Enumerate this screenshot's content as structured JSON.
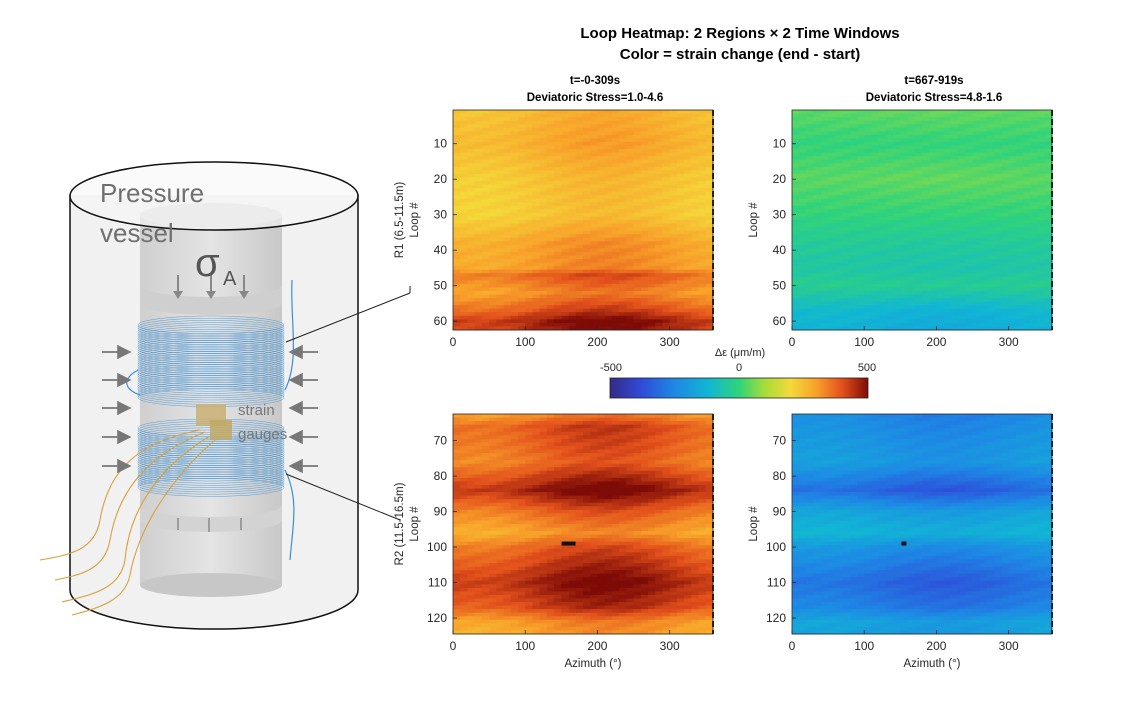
{
  "illustration": {
    "vessel_label_line1": "Pressure",
    "vessel_label_line2": "vessel",
    "sigma_symbol": "σ",
    "sigma_subscript": "A",
    "gauges_label_line1": "strain",
    "gauges_label_line2": "gauges",
    "loop_color": "#3a8fd6",
    "gauge_wire_color": "#d8a13c"
  },
  "chart_data": {
    "type": "heatmap",
    "title_line1": "Loop Heatmap: 2 Regions × 2 Time Windows",
    "title_line2": "Color = strain change (end - start)",
    "colormap": "parula-like (dark blue → cyan → green → yellow → red → dark red)",
    "colorbar": {
      "label": "Δε (μm/m)",
      "range": [
        -500,
        500
      ],
      "ticks": [
        "-500",
        "0",
        "500"
      ],
      "orientation": "horizontal"
    },
    "xlabel": "Azimuth (°)",
    "xlim": [
      0,
      360
    ],
    "xticks": [
      "0",
      "100",
      "200",
      "300"
    ],
    "ylabel": "Loop #",
    "columns": [
      {
        "time_label": "t=-0-309s",
        "stress_label": "Deviatoric Stress=1.0-4.6"
      },
      {
        "time_label": "t=667-919s",
        "stress_label": "Deviatoric Stress=4.8-1.6"
      }
    ],
    "rows": [
      {
        "region_label": "R1 (6.5-11.5m)",
        "loop_range": [
          1,
          62
        ],
        "yticks": [
          "10",
          "20",
          "30",
          "40",
          "50",
          "60"
        ]
      },
      {
        "region_label": "R2 (11.5-16.5m)",
        "loop_range": [
          63,
          124
        ],
        "yticks": [
          "70",
          "80",
          "90",
          "100",
          "110",
          "120"
        ]
      }
    ],
    "panels": [
      {
        "row": 0,
        "col": 0,
        "description": "mostly yellow to orange, stronger orange near loops 45-48 and dark orange-red near loops 57-62",
        "approx_strain_profile": [
          [
            1,
            260
          ],
          [
            10,
            280
          ],
          [
            20,
            240
          ],
          [
            30,
            230
          ],
          [
            38,
            300
          ],
          [
            45,
            310
          ],
          [
            47,
            380
          ],
          [
            52,
            320
          ],
          [
            57,
            400
          ],
          [
            60,
            470
          ],
          [
            62,
            460
          ]
        ]
      },
      {
        "row": 0,
        "col": 1,
        "description": "mostly green/cyan, bluer toward loops 45-62",
        "approx_strain_profile": [
          [
            1,
            40
          ],
          [
            10,
            0
          ],
          [
            20,
            40
          ],
          [
            30,
            0
          ],
          [
            38,
            -40
          ],
          [
            45,
            -60
          ],
          [
            50,
            -30
          ],
          [
            57,
            -120
          ],
          [
            62,
            -140
          ]
        ]
      },
      {
        "row": 1,
        "col": 0,
        "description": "orange-red throughout, darkest red near loops 80-88 and 103-115, yellower band near 95-98 and top",
        "approx_strain_profile": [
          [
            63,
            330
          ],
          [
            66,
            400
          ],
          [
            72,
            380
          ],
          [
            76,
            360
          ],
          [
            84,
            480
          ],
          [
            90,
            370
          ],
          [
            96,
            300
          ],
          [
            100,
            380
          ],
          [
            110,
            470
          ],
          [
            117,
            420
          ],
          [
            121,
            320
          ],
          [
            124,
            300
          ]
        ],
        "marker": {
          "azimuth": 160,
          "loop": 99
        }
      },
      {
        "row": 1,
        "col": 1,
        "description": "blue to cyan, deepest blue near loops 80-88 and 103-115, greenish near loops 90 and 96",
        "approx_strain_profile": [
          [
            63,
            -250
          ],
          [
            70,
            -220
          ],
          [
            76,
            -200
          ],
          [
            84,
            -330
          ],
          [
            90,
            -180
          ],
          [
            96,
            -130
          ],
          [
            100,
            -220
          ],
          [
            110,
            -320
          ],
          [
            117,
            -270
          ],
          [
            121,
            -180
          ],
          [
            124,
            -190
          ]
        ],
        "marker": {
          "azimuth": 155,
          "loop": 99
        }
      }
    ]
  }
}
